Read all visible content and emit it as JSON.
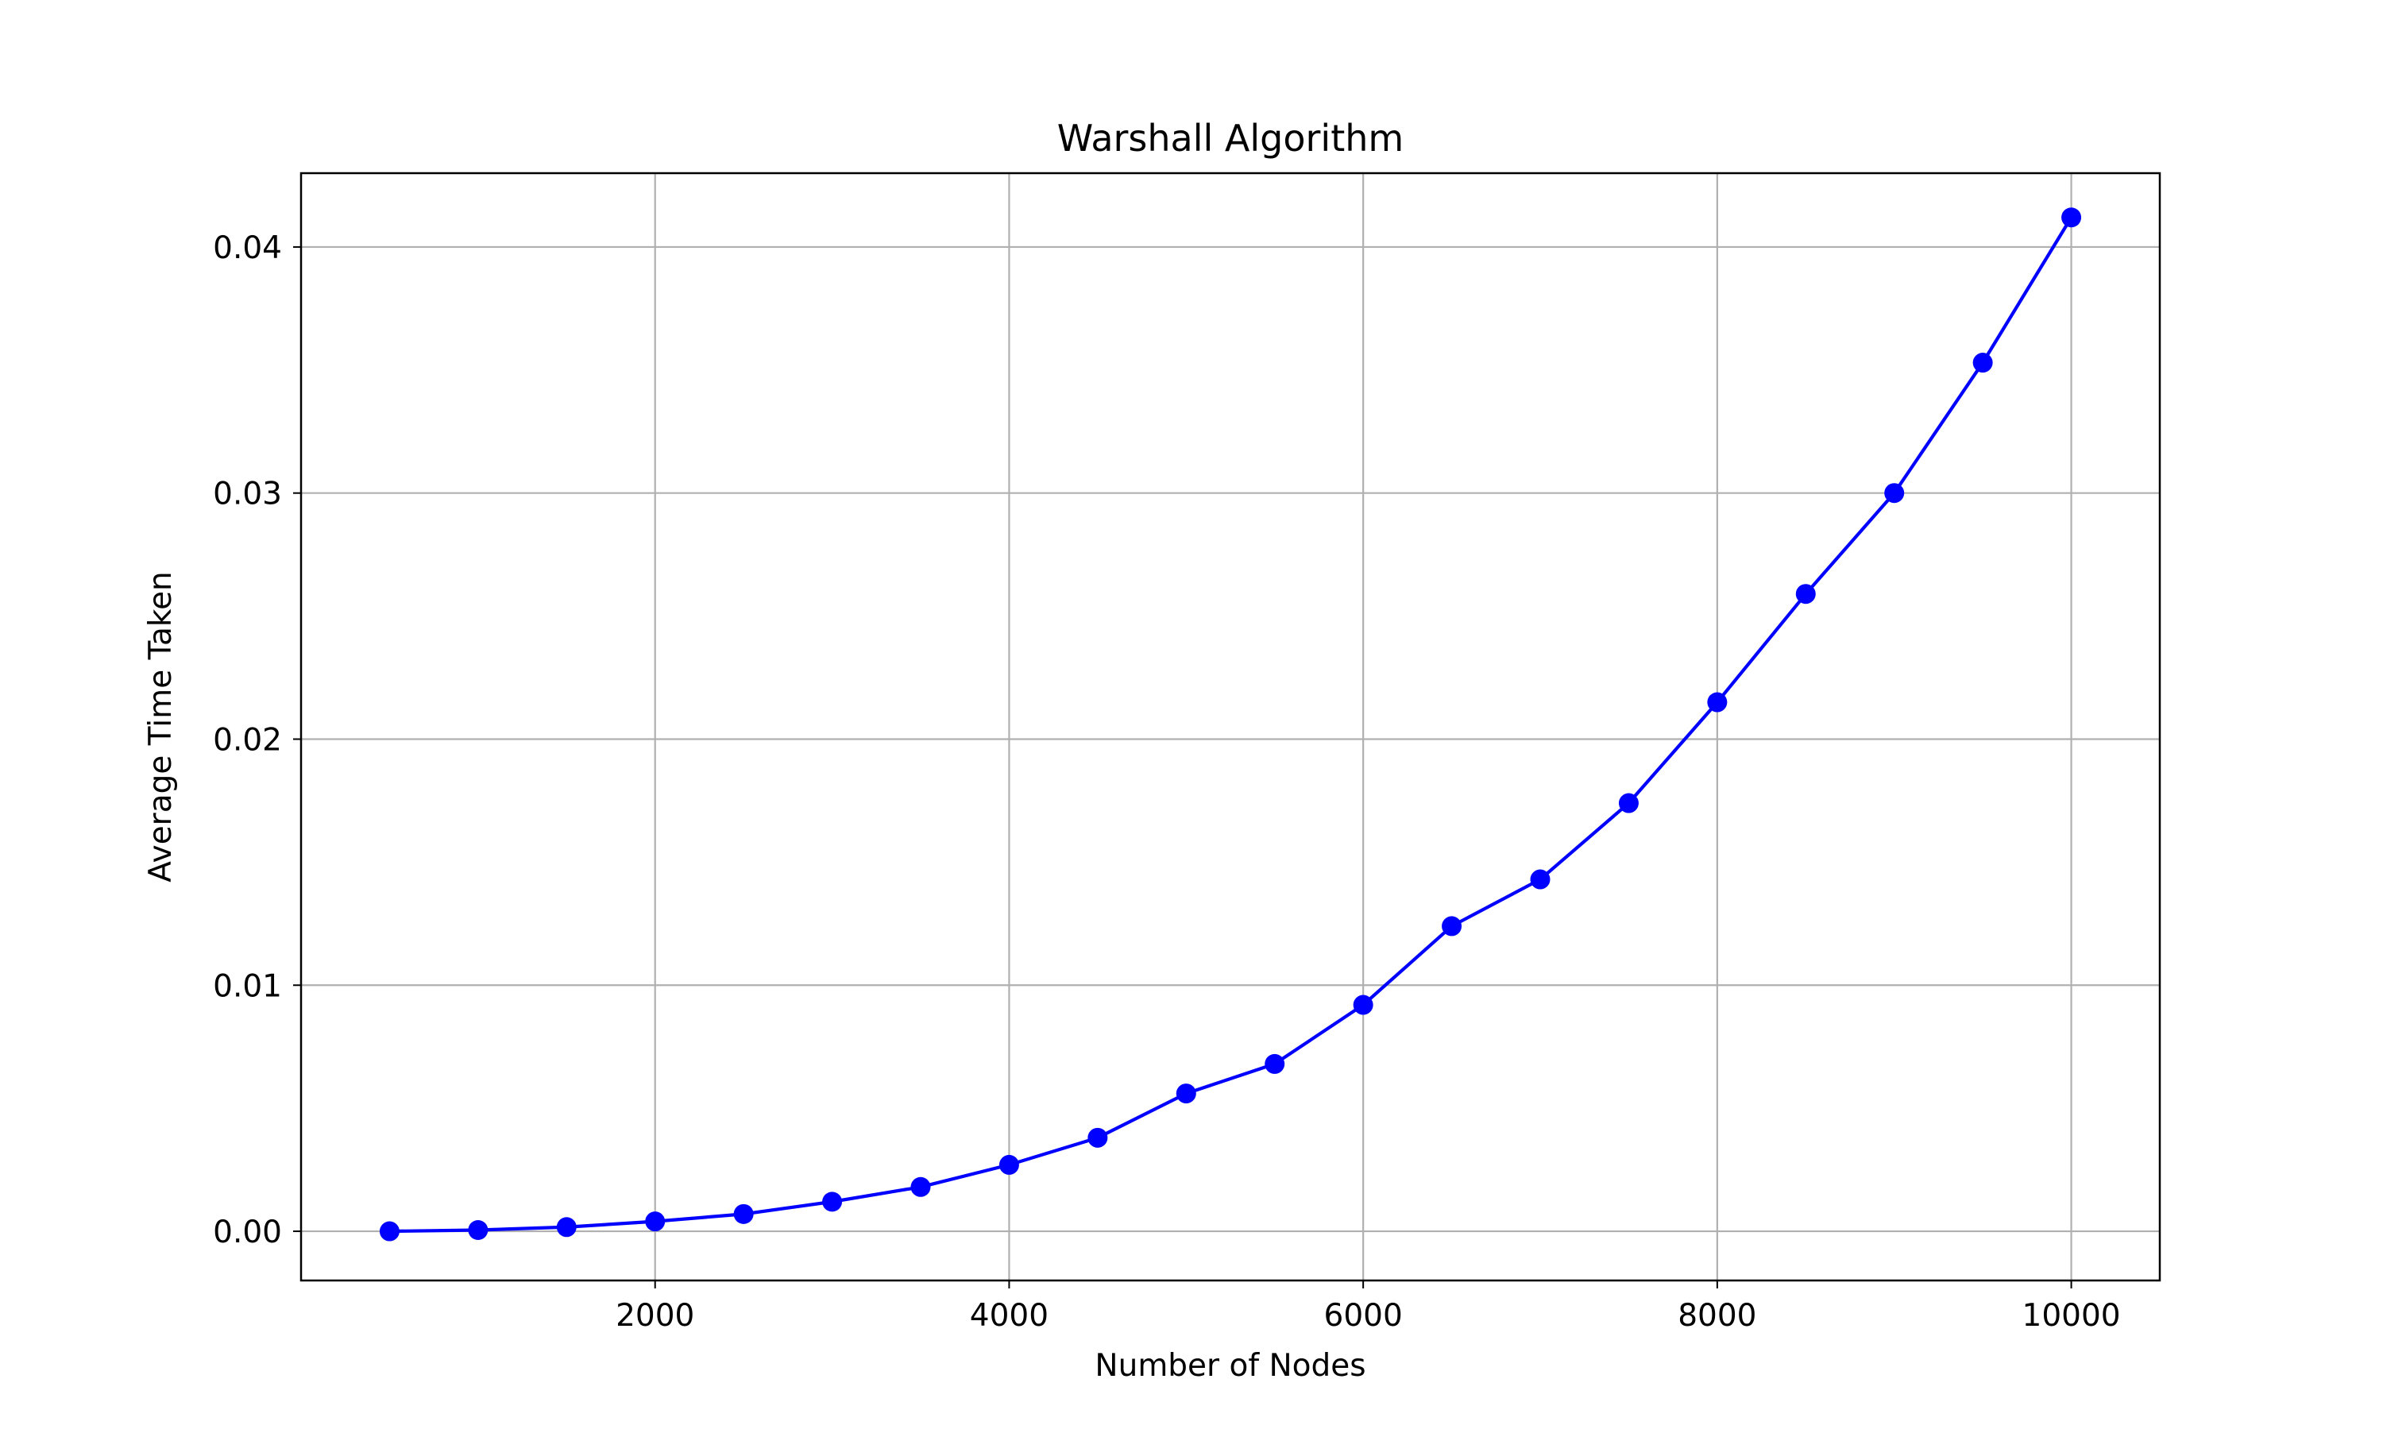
{
  "chart_data": {
    "type": "line",
    "title": "Warshall Algorithm",
    "xlabel": "Number of Nodes",
    "ylabel": "Average Time Taken",
    "xlim": [
      0,
      10500
    ],
    "ylim": [
      -0.002,
      0.043
    ],
    "x_ticks": [
      2000,
      4000,
      6000,
      8000,
      10000
    ],
    "x_tick_labels": [
      "2000",
      "4000",
      "6000",
      "8000",
      "10000"
    ],
    "y_ticks": [
      0.0,
      0.01,
      0.02,
      0.03,
      0.04
    ],
    "y_tick_labels": [
      "0.00",
      "0.01",
      "0.02",
      "0.03",
      "0.04"
    ],
    "grid": true,
    "legend": "none",
    "series": [
      {
        "color": "#0000ff",
        "marker": "circle",
        "points": [
          {
            "x": 500,
            "y": 0.0
          },
          {
            "x": 1000,
            "y": 5e-05
          },
          {
            "x": 1500,
            "y": 0.00017
          },
          {
            "x": 2000,
            "y": 0.0004
          },
          {
            "x": 2500,
            "y": 0.0007
          },
          {
            "x": 3000,
            "y": 0.0012
          },
          {
            "x": 3500,
            "y": 0.0018
          },
          {
            "x": 4000,
            "y": 0.0027
          },
          {
            "x": 4500,
            "y": 0.0038
          },
          {
            "x": 5000,
            "y": 0.0056
          },
          {
            "x": 5500,
            "y": 0.0068
          },
          {
            "x": 6000,
            "y": 0.0092
          },
          {
            "x": 6500,
            "y": 0.0124
          },
          {
            "x": 7000,
            "y": 0.0143
          },
          {
            "x": 7500,
            "y": 0.0174
          },
          {
            "x": 8000,
            "y": 0.0215
          },
          {
            "x": 8500,
            "y": 0.0259
          },
          {
            "x": 9000,
            "y": 0.03
          },
          {
            "x": 9500,
            "y": 0.0353
          },
          {
            "x": 10000,
            "y": 0.0412
          }
        ]
      }
    ]
  }
}
